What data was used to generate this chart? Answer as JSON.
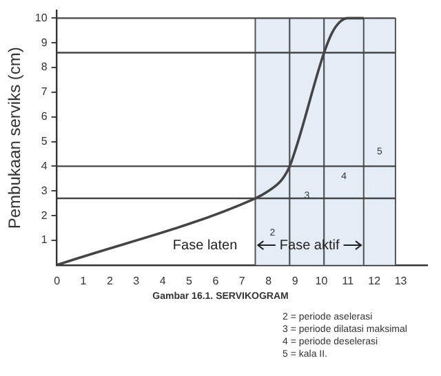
{
  "chart_data": {
    "type": "line",
    "ylabel": "Pembukaan serviks (cm)",
    "x": [
      0,
      7.5,
      8,
      8.5,
      8.8,
      10.1,
      10.4,
      10.7,
      11.0,
      11.6
    ],
    "series": [
      {
        "color": "#444444",
        "values": [
          0,
          2.7,
          3.0,
          3.45,
          4.0,
          8.6,
          9.4,
          9.85,
          10.0,
          10.0
        ]
      }
    ],
    "xlim": [
      0,
      14
    ],
    "xticks": [
      0,
      1,
      2,
      3,
      4,
      5,
      6,
      7,
      8,
      9,
      10,
      11,
      12,
      13
    ],
    "ylim": [
      0,
      10.3
    ],
    "yticks": [
      1,
      2,
      3,
      4,
      5,
      6,
      7,
      8,
      9,
      10
    ],
    "grid": false,
    "legend": false,
    "marker": "none",
    "line_style": "solid",
    "ref_lines": [
      {
        "axis": "y",
        "value": 2.7,
        "label": null
      },
      {
        "axis": "y",
        "value": 4,
        "label": null
      },
      {
        "axis": "y",
        "value": 8.6,
        "label": null
      },
      {
        "axis": "y",
        "value": 10,
        "label": null
      }
    ],
    "bands": [
      {
        "axis": "x",
        "from": 7.5,
        "to": 8.8,
        "label": "2",
        "color": "#e4ecf6"
      },
      {
        "axis": "x",
        "from": 8.8,
        "to": 10.1,
        "label": "3",
        "color": "#e4ecf6"
      },
      {
        "axis": "x",
        "from": 10.1,
        "to": 11.6,
        "label": "4",
        "color": "#e4ecf6"
      },
      {
        "axis": "x",
        "from": 11.6,
        "to": 12.8,
        "label": "5",
        "color": "#e4ecf6"
      }
    ],
    "annotations": [
      "Fase laten",
      "Fase aktif",
      "Gambar 16.1. SERVIKOGRAM",
      "2 = periode aselerasi",
      "3 = periode dilatasi maksimal",
      "4 = periode deselerasi",
      "5 = kala II."
    ]
  }
}
